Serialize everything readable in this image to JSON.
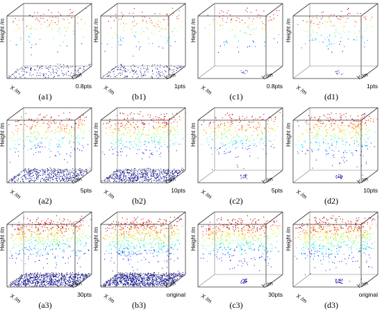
{
  "chart_data": {
    "type": "scatter",
    "subtype": "3d-point-cloud-grid",
    "grid": {
      "rows": 3,
      "cols": 4
    },
    "axes": {
      "x_label": "X /m",
      "y_label": "Y /m",
      "z_label": "Height /m"
    },
    "colormap": "jet (blue = low height, red = high height)",
    "panels": [
      {
        "caption": "(a1)",
        "label": "0.8pts",
        "density": 0.12,
        "ground": true
      },
      {
        "caption": "(b1)",
        "label": "1pts",
        "density": 0.15,
        "ground": true
      },
      {
        "caption": "(c1)",
        "label": "0.8pts",
        "density": 0.12,
        "ground": false
      },
      {
        "caption": "(d1)",
        "label": "1pts",
        "density": 0.15,
        "ground": false
      },
      {
        "caption": "(a2)",
        "label": "5pts",
        "density": 0.45,
        "ground": true
      },
      {
        "caption": "(b2)",
        "label": "10pts",
        "density": 0.62,
        "ground": true
      },
      {
        "caption": "(c2)",
        "label": "5pts",
        "density": 0.45,
        "ground": false
      },
      {
        "caption": "(d2)",
        "label": "10pts",
        "density": 0.62,
        "ground": false
      },
      {
        "caption": "(a3)",
        "label": "30pts",
        "density": 0.85,
        "ground": true
      },
      {
        "caption": "(b3)",
        "label": "original",
        "density": 1.0,
        "ground": true
      },
      {
        "caption": "(c3)",
        "label": "30pts",
        "density": 0.85,
        "ground": false
      },
      {
        "caption": "(d3)",
        "label": "original",
        "density": 1.0,
        "ground": false
      }
    ]
  }
}
